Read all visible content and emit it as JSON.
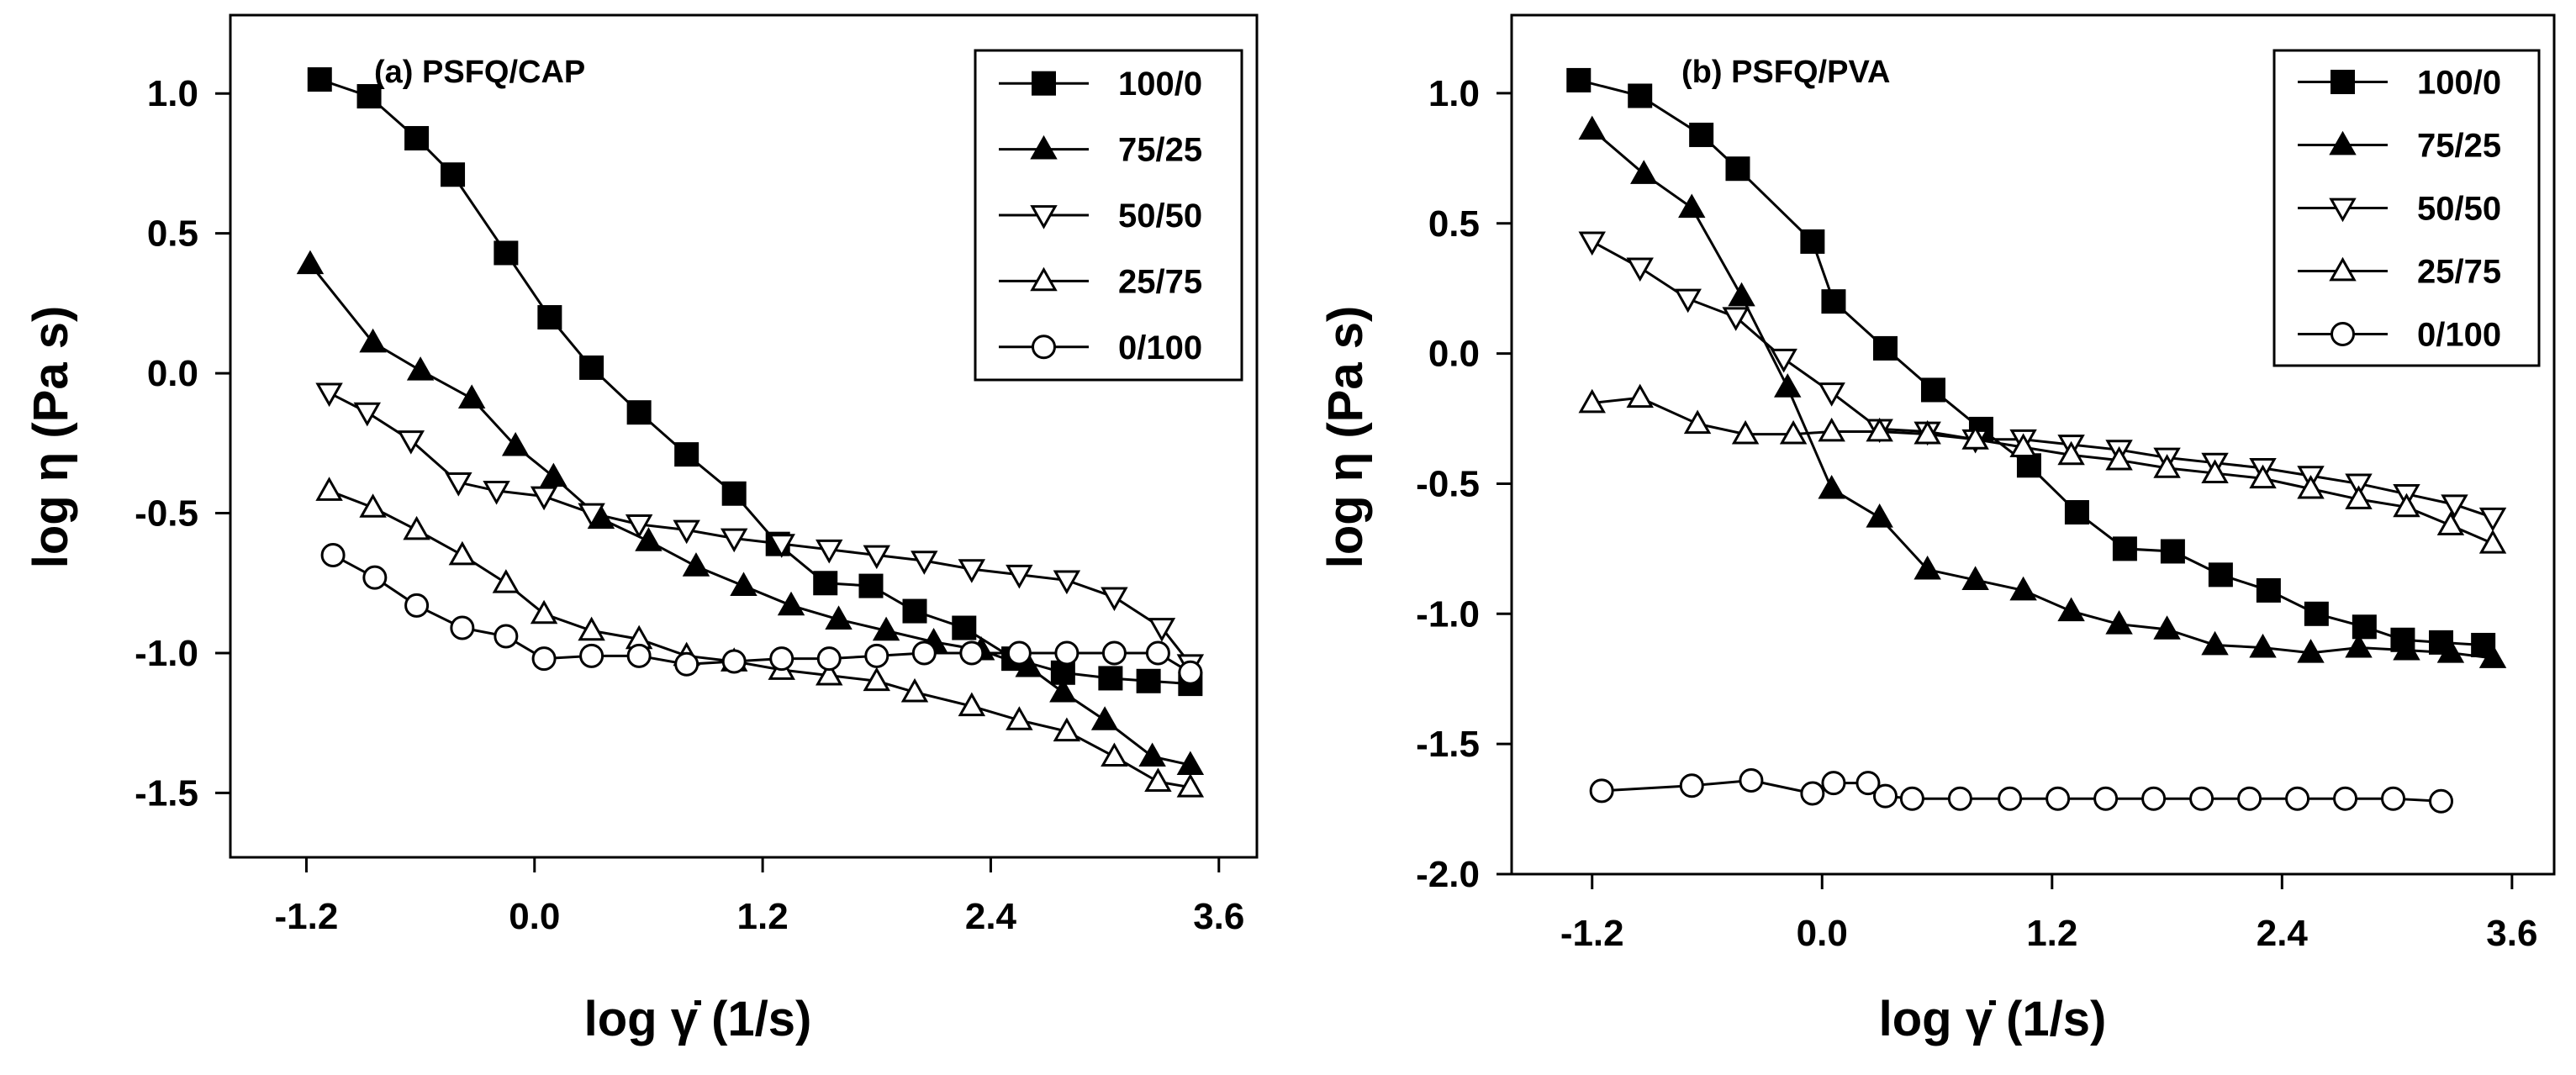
{
  "chart_data": [
    {
      "type": "line",
      "title": "(a) PSFQ/CAP",
      "xlabel": "log γ̇ (1/s)",
      "ylabel": "log η (Pa s)",
      "xlim": [
        -1.6,
        3.8
      ],
      "ylim": [
        -1.73,
        1.28
      ],
      "xticks": [
        -1.2,
        0.0,
        1.2,
        2.4,
        3.6
      ],
      "xtick_labels": [
        "-1.2",
        "0.0",
        "1.2",
        "2.4",
        "3.6"
      ],
      "yticks": [
        1.0,
        0.5,
        0.0,
        -0.5,
        -1.0,
        -1.5
      ],
      "ytick_labels": [
        "1.0",
        "0.5",
        "0.0",
        "-0.5",
        "-1.0",
        "-1.5"
      ],
      "grid": false,
      "legend_position": "top-right",
      "series": [
        {
          "name": "100/0",
          "marker": "square-filled",
          "x": [
            -1.13,
            -0.87,
            -0.62,
            -0.43,
            -0.15,
            0.08,
            0.3,
            0.55,
            0.8,
            1.05,
            1.28,
            1.53,
            1.77,
            2.0,
            2.26,
            2.52,
            2.78,
            3.03,
            3.23,
            3.45
          ],
          "y": [
            1.05,
            0.99,
            0.84,
            0.71,
            0.43,
            0.2,
            0.02,
            -0.14,
            -0.29,
            -0.43,
            -0.61,
            -0.75,
            -0.76,
            -0.85,
            -0.91,
            -1.02,
            -1.07,
            -1.09,
            -1.1,
            -1.11
          ]
        },
        {
          "name": "75/25",
          "marker": "triangle-up-filled",
          "x": [
            -1.18,
            -0.85,
            -0.6,
            -0.33,
            -0.1,
            0.1,
            0.35,
            0.6,
            0.85,
            1.1,
            1.35,
            1.6,
            1.85,
            2.1,
            2.35,
            2.6,
            2.78,
            3.0,
            3.25,
            3.45
          ],
          "y": [
            0.39,
            0.11,
            0.01,
            -0.09,
            -0.26,
            -0.37,
            -0.52,
            -0.6,
            -0.69,
            -0.76,
            -0.83,
            -0.88,
            -0.92,
            -0.96,
            -0.99,
            -1.05,
            -1.14,
            -1.24,
            -1.37,
            -1.4
          ]
        },
        {
          "name": "50/50",
          "marker": "triangle-down-open",
          "x": [
            -1.08,
            -0.88,
            -0.65,
            -0.4,
            -0.2,
            0.05,
            0.3,
            0.55,
            0.8,
            1.05,
            1.3,
            1.55,
            1.8,
            2.05,
            2.3,
            2.55,
            2.8,
            3.05,
            3.3,
            3.45
          ],
          "y": [
            -0.07,
            -0.14,
            -0.24,
            -0.39,
            -0.42,
            -0.44,
            -0.5,
            -0.54,
            -0.56,
            -0.59,
            -0.61,
            -0.63,
            -0.65,
            -0.67,
            -0.7,
            -0.72,
            -0.74,
            -0.8,
            -0.91,
            -1.04
          ]
        },
        {
          "name": "25/75",
          "marker": "triangle-up-open",
          "x": [
            -1.08,
            -0.85,
            -0.62,
            -0.38,
            -0.15,
            0.05,
            0.3,
            0.55,
            0.8,
            1.05,
            1.3,
            1.55,
            1.8,
            2.0,
            2.3,
            2.55,
            2.8,
            3.05,
            3.28,
            3.45
          ],
          "y": [
            -0.42,
            -0.48,
            -0.56,
            -0.65,
            -0.75,
            -0.86,
            -0.92,
            -0.95,
            -1.01,
            -1.03,
            -1.06,
            -1.08,
            -1.1,
            -1.14,
            -1.19,
            -1.24,
            -1.28,
            -1.37,
            -1.46,
            -1.48
          ]
        },
        {
          "name": "0/100",
          "marker": "circle-open",
          "x": [
            -1.06,
            -0.84,
            -0.62,
            -0.38,
            -0.15,
            0.05,
            0.3,
            0.55,
            0.8,
            1.05,
            1.3,
            1.55,
            1.8,
            2.05,
            2.3,
            2.55,
            2.8,
            3.05,
            3.28,
            3.45
          ],
          "y": [
            -0.65,
            -0.73,
            -0.83,
            -0.91,
            -0.94,
            -1.02,
            -1.01,
            -1.01,
            -1.04,
            -1.03,
            -1.02,
            -1.02,
            -1.01,
            -1.0,
            -1.0,
            -1.0,
            -1.0,
            -1.0,
            -1.0,
            -1.07
          ]
        }
      ]
    },
    {
      "type": "line",
      "title": "(b) PSFQ/PVA",
      "xlabel": "log γ̇ (1/s)",
      "ylabel": "log η (Pa s)",
      "xlim": [
        -1.62,
        3.82
      ],
      "ylim": [
        -2.0,
        1.3
      ],
      "xticks": [
        -1.2,
        0.0,
        1.2,
        2.4,
        3.6
      ],
      "xtick_labels": [
        "-1.2",
        "0.0",
        "1.2",
        "2.4",
        "3.6"
      ],
      "yticks": [
        1.0,
        0.5,
        0.0,
        -0.5,
        -1.0,
        -1.5,
        -2.0
      ],
      "ytick_labels": [
        "1.0",
        "0.5",
        "0.0",
        "-0.5",
        "-1.0",
        "-1.5",
        "-2.0"
      ],
      "grid": false,
      "legend_position": "top-right",
      "series": [
        {
          "name": "100/0",
          "marker": "square-filled",
          "x": [
            -1.27,
            -0.95,
            -0.63,
            -0.44,
            -0.05,
            0.06,
            0.33,
            0.58,
            0.83,
            1.08,
            1.33,
            1.58,
            1.83,
            2.08,
            2.33,
            2.58,
            2.83,
            3.03,
            3.23,
            3.45
          ],
          "y": [
            1.05,
            0.99,
            0.84,
            0.71,
            0.43,
            0.2,
            0.02,
            -0.14,
            -0.29,
            -0.43,
            -0.61,
            -0.75,
            -0.76,
            -0.85,
            -0.91,
            -1.0,
            -1.05,
            -1.1,
            -1.11,
            -1.12
          ]
        },
        {
          "name": "75/25",
          "marker": "triangle-up-filled",
          "x": [
            -1.2,
            -0.93,
            -0.68,
            -0.42,
            -0.18,
            0.05,
            0.3,
            0.55,
            0.8,
            1.05,
            1.3,
            1.55,
            1.8,
            2.05,
            2.3,
            2.55,
            2.8,
            3.05,
            3.28,
            3.5
          ],
          "y": [
            0.86,
            0.69,
            0.56,
            0.22,
            -0.13,
            -0.52,
            -0.63,
            -0.83,
            -0.87,
            -0.91,
            -0.99,
            -1.04,
            -1.06,
            -1.12,
            -1.13,
            -1.15,
            -1.13,
            -1.14,
            -1.15,
            -1.17
          ]
        },
        {
          "name": "50/50",
          "marker": "triangle-down-open",
          "x": [
            -1.2,
            -0.95,
            -0.7,
            -0.45,
            -0.2,
            0.05,
            0.3,
            0.55,
            0.8,
            1.05,
            1.3,
            1.55,
            1.8,
            2.05,
            2.3,
            2.55,
            2.8,
            3.05,
            3.3,
            3.5
          ],
          "y": [
            0.43,
            0.33,
            0.21,
            0.14,
            -0.02,
            -0.15,
            -0.29,
            -0.3,
            -0.33,
            -0.33,
            -0.35,
            -0.37,
            -0.4,
            -0.42,
            -0.44,
            -0.47,
            -0.5,
            -0.54,
            -0.58,
            -0.63
          ]
        },
        {
          "name": "25/75",
          "marker": "triangle-up-open",
          "x": [
            -1.2,
            -0.95,
            -0.65,
            -0.4,
            -0.15,
            0.05,
            0.3,
            0.55,
            0.8,
            1.05,
            1.3,
            1.55,
            1.8,
            2.05,
            2.3,
            2.55,
            2.8,
            3.05,
            3.28,
            3.5
          ],
          "y": [
            -0.19,
            -0.17,
            -0.27,
            -0.31,
            -0.31,
            -0.3,
            -0.3,
            -0.31,
            -0.33,
            -0.36,
            -0.39,
            -0.41,
            -0.44,
            -0.46,
            -0.48,
            -0.52,
            -0.56,
            -0.59,
            -0.66,
            -0.73
          ]
        },
        {
          "name": "0/100",
          "marker": "circle-open",
          "x": [
            -1.15,
            -0.68,
            -0.37,
            -0.05,
            0.06,
            0.24,
            0.33,
            0.47,
            0.72,
            0.98,
            1.23,
            1.48,
            1.73,
            1.98,
            2.23,
            2.48,
            2.73,
            2.98,
            3.23
          ],
          "y": [
            -1.68,
            -1.66,
            -1.64,
            -1.69,
            -1.65,
            -1.65,
            -1.7,
            -1.71,
            -1.71,
            -1.71,
            -1.71,
            -1.71,
            -1.71,
            -1.71,
            -1.71,
            -1.71,
            -1.71,
            -1.71,
            -1.72
          ]
        }
      ]
    }
  ]
}
